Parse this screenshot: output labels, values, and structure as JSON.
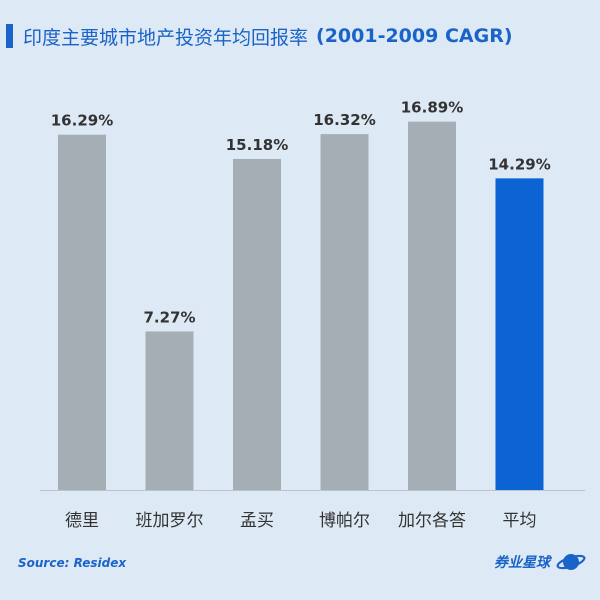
{
  "title": {
    "main": "印度主要城市地产投资年均回报率",
    "suffix": "(2001-2009 CAGR)"
  },
  "colors": {
    "accent": "#1a63c8",
    "bar_default": "#a6aeb5",
    "bar_highlight": "#0b63d4",
    "background": "#dde9f5"
  },
  "chart_data": {
    "type": "bar",
    "categories": [
      "德里",
      "班加罗尔",
      "孟买",
      "博帕尔",
      "加尔各答",
      "平均"
    ],
    "values": [
      16.29,
      7.27,
      15.18,
      16.32,
      16.89,
      14.29
    ],
    "data_labels": [
      "16.29%",
      "7.27%",
      "15.18%",
      "16.32%",
      "16.89%",
      "14.29%"
    ],
    "highlight_index": 5,
    "ylim": [
      0,
      18.8
    ],
    "grid": false,
    "title": "印度主要城市地产投资年均回报率 (2001-2009 CAGR)",
    "xlabel": "",
    "ylabel": ""
  },
  "footer": {
    "source": "Source: Residex",
    "brand": "券业星球",
    "brand_icon": "planet-icon"
  }
}
